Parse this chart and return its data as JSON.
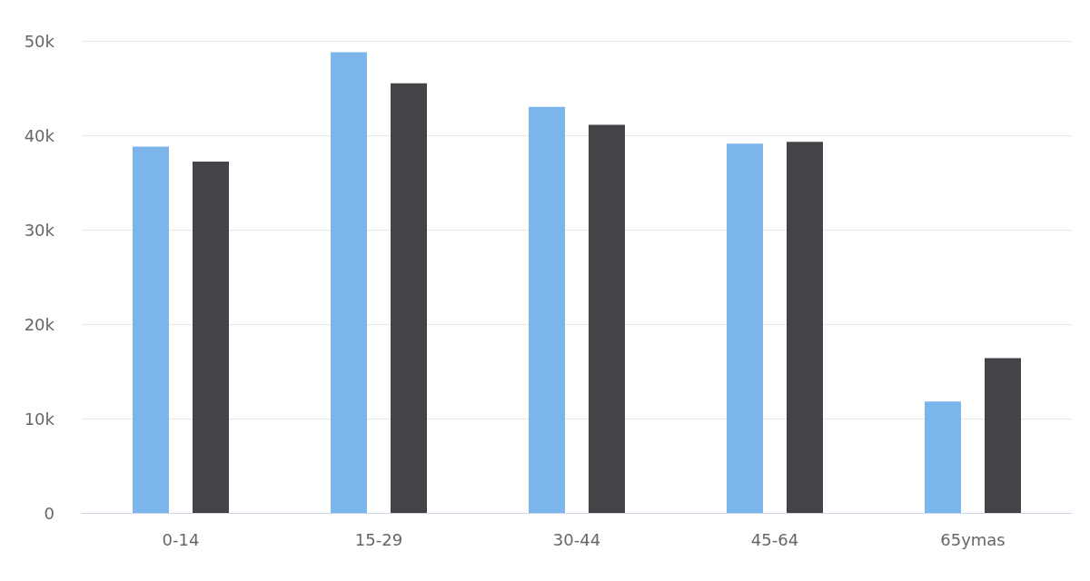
{
  "chart_data": {
    "type": "bar",
    "categories": [
      "0-14",
      "15-29",
      "30-44",
      "45-64",
      "65ymas"
    ],
    "series": [
      {
        "color": "#7cb5ec",
        "values": [
          38800,
          48800,
          43000,
          39100,
          11800
        ]
      },
      {
        "color": "#434348",
        "values": [
          37200,
          45500,
          41100,
          39300,
          16400
        ]
      }
    ],
    "ylim": [
      0,
      50000
    ],
    "yticks": [
      0,
      {
        "value": 10000,
        "label": "10k"
      },
      {
        "value": 20000,
        "label": "20k"
      },
      {
        "value": 30000,
        "label": "30k"
      },
      {
        "value": 40000,
        "label": "40k"
      },
      {
        "value": 50000,
        "label": "50k"
      }
    ],
    "grid": "y"
  }
}
